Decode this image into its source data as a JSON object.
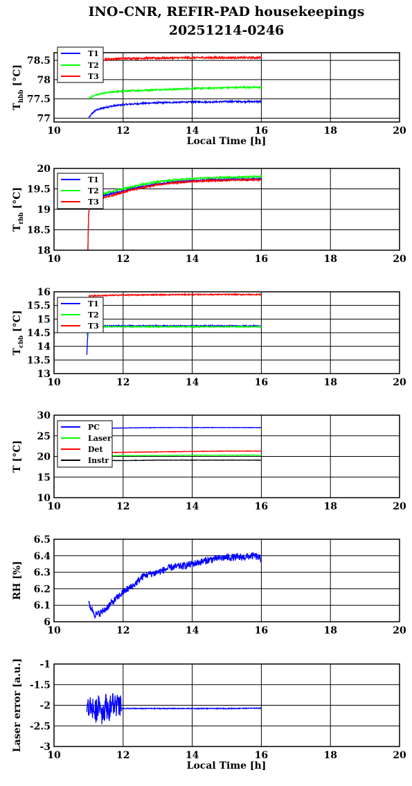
{
  "figure": {
    "title_line1": "INO-CNR, REFIR-PAD housekeepings",
    "title_line2": "20251214-0246"
  },
  "chart_data": [
    {
      "type": "line",
      "ylabel_main": "T",
      "ylabel_sub": "hbb",
      "ylabel_unit": "[°C]",
      "xlabel": "Local Time [h]",
      "xlim": [
        10,
        20
      ],
      "ylim": [
        76.9,
        78.7
      ],
      "xticks": [
        "10",
        "12",
        "14",
        "16",
        "18",
        "20"
      ],
      "yticks": [
        "77",
        "77.5",
        "78",
        "78.5"
      ],
      "ytick_values": [
        77,
        77.5,
        78,
        78.5
      ],
      "legend": "top-left",
      "grid": true,
      "series": [
        {
          "name": "T1",
          "color": "#0000ff",
          "x": [
            11.0,
            11.1,
            11.2,
            11.4,
            11.6,
            11.8,
            12.0,
            12.5,
            13.0,
            13.5,
            14.0,
            14.5,
            15.0,
            15.5,
            16.0
          ],
          "values": [
            77.0,
            77.12,
            77.2,
            77.26,
            77.3,
            77.33,
            77.35,
            77.38,
            77.4,
            77.41,
            77.42,
            77.42,
            77.43,
            77.43,
            77.43
          ],
          "noise": 0.02
        },
        {
          "name": "T2",
          "color": "#00ff00",
          "x": [
            11.0,
            11.1,
            11.2,
            11.4,
            11.6,
            11.8,
            12.0,
            12.5,
            13.0,
            13.5,
            14.0,
            14.5,
            15.0,
            15.5,
            16.0
          ],
          "values": [
            77.5,
            77.56,
            77.6,
            77.64,
            77.67,
            77.69,
            77.7,
            77.72,
            77.74,
            77.75,
            77.77,
            77.78,
            77.79,
            77.8,
            77.8
          ],
          "noise": 0.02
        },
        {
          "name": "T3",
          "color": "#ff0000",
          "x": [
            11.0,
            11.2,
            11.5,
            12.0,
            13.0,
            14.0,
            15.0,
            16.0
          ],
          "values": [
            78.45,
            78.5,
            78.53,
            78.55,
            78.56,
            78.57,
            78.57,
            78.57
          ],
          "noise": 0.025
        }
      ]
    },
    {
      "type": "line",
      "ylabel_main": "T",
      "ylabel_sub": "rbb",
      "ylabel_unit": "[°C]",
      "xlabel": "",
      "xlim": [
        10,
        20
      ],
      "ylim": [
        18,
        20
      ],
      "xticks": [
        "10",
        "12",
        "14",
        "16",
        "18",
        "20"
      ],
      "yticks": [
        "18",
        "18.5",
        "19",
        "19.5",
        "20"
      ],
      "ytick_values": [
        18,
        18.5,
        19,
        19.5,
        20
      ],
      "legend": "top-left",
      "grid": true,
      "series": [
        {
          "name": "T1",
          "color": "#0000ff",
          "x": [
            10.98,
            11.0,
            11.05,
            11.2,
            11.5,
            12.0,
            12.5,
            13.0,
            13.5,
            14.0,
            14.5,
            15.0,
            15.5,
            16.0
          ],
          "values": [
            18.0,
            18.9,
            19.15,
            19.25,
            19.35,
            19.45,
            19.55,
            19.62,
            19.67,
            19.7,
            19.72,
            19.73,
            19.74,
            19.74
          ],
          "noise": 0.02
        },
        {
          "name": "T2",
          "color": "#00ff00",
          "x": [
            10.98,
            11.0,
            11.05,
            11.2,
            11.5,
            12.0,
            12.5,
            13.0,
            13.5,
            14.0,
            14.5,
            15.0,
            15.5,
            16.0
          ],
          "values": [
            18.0,
            18.9,
            19.18,
            19.3,
            19.4,
            19.5,
            19.6,
            19.67,
            19.72,
            19.75,
            19.77,
            19.78,
            19.79,
            19.8
          ],
          "noise": 0.02
        },
        {
          "name": "T3",
          "color": "#ff0000",
          "x": [
            10.98,
            11.0,
            11.05,
            11.2,
            11.5,
            12.0,
            12.5,
            13.0,
            13.5,
            14.0,
            14.5,
            15.0,
            15.5,
            16.0
          ],
          "values": [
            18.0,
            18.9,
            19.1,
            19.2,
            19.3,
            19.42,
            19.52,
            19.6,
            19.65,
            19.68,
            19.7,
            19.71,
            19.72,
            19.72
          ],
          "noise": 0.02
        }
      ]
    },
    {
      "type": "line",
      "ylabel_main": "T",
      "ylabel_sub": "cbb",
      "ylabel_unit": "[°C]",
      "xlabel": "",
      "xlim": [
        10,
        20
      ],
      "ylim": [
        13,
        16
      ],
      "xticks": [
        "10",
        "12",
        "14",
        "16",
        "18",
        "20"
      ],
      "yticks": [
        "13",
        "13.5",
        "14",
        "14.5",
        "15",
        "15.5",
        "16"
      ],
      "ytick_values": [
        13,
        13.5,
        14,
        14.5,
        15,
        15.5,
        16
      ],
      "legend": "top-left",
      "grid": true,
      "series": [
        {
          "name": "T1",
          "color": "#0000ff",
          "x": [
            10.95,
            10.97,
            11.0,
            11.1,
            12.0,
            13.0,
            14.0,
            15.0,
            16.0
          ],
          "values": [
            13.7,
            14.3,
            14.7,
            14.75,
            14.75,
            14.75,
            14.75,
            14.75,
            14.75
          ],
          "noise": 0.02
        },
        {
          "name": "T2",
          "color": "#00ff00",
          "x": [
            10.95,
            10.97,
            11.0,
            11.1,
            12.0,
            13.0,
            14.0,
            15.0,
            16.0
          ],
          "values": [
            14.4,
            14.6,
            14.7,
            14.72,
            14.72,
            14.72,
            14.72,
            14.72,
            14.72
          ],
          "noise": 0.02
        },
        {
          "name": "T3",
          "color": "#ff0000",
          "x": [
            11.0,
            12.0,
            13.0,
            14.0,
            15.0,
            16.0
          ],
          "values": [
            15.85,
            15.88,
            15.89,
            15.9,
            15.9,
            15.9
          ],
          "noise": 0.02
        }
      ]
    },
    {
      "type": "line",
      "ylabel_main": "T [°C]",
      "ylabel_sub": "",
      "ylabel_unit": "",
      "xlabel": "",
      "xlim": [
        10,
        20
      ],
      "ylim": [
        10,
        30
      ],
      "xticks": [
        "10",
        "12",
        "14",
        "16",
        "18",
        "20"
      ],
      "yticks": [
        "10",
        "15",
        "20",
        "25",
        "30"
      ],
      "ytick_values": [
        10,
        15,
        20,
        25,
        30
      ],
      "legend": "top-left",
      "grid": true,
      "series": [
        {
          "name": "PC",
          "color": "#0000ff",
          "x": [
            11.0,
            12.0,
            13.0,
            14.0,
            15.0,
            16.0
          ],
          "values": [
            26.8,
            26.9,
            27.0,
            27.0,
            27.0,
            27.0
          ],
          "noise": 0.05
        },
        {
          "name": "Laser",
          "color": "#00ff00",
          "x": [
            11.0,
            12.0,
            13.0,
            14.0,
            15.0,
            16.0
          ],
          "values": [
            20.1,
            20.2,
            20.2,
            20.3,
            20.3,
            20.3
          ],
          "noise": 0.05
        },
        {
          "name": "Det",
          "color": "#ff0000",
          "x": [
            11.0,
            12.0,
            13.0,
            14.0,
            15.0,
            16.0
          ],
          "values": [
            20.8,
            21.0,
            21.1,
            21.2,
            21.3,
            21.3
          ],
          "noise": 0.06
        },
        {
          "name": "Instr",
          "color": "#000000",
          "x": [
            11.0,
            12.0,
            13.0,
            14.0,
            15.0,
            16.0
          ],
          "values": [
            19.0,
            19.0,
            19.1,
            19.1,
            19.1,
            19.1
          ],
          "noise": 0.05
        }
      ]
    },
    {
      "type": "line",
      "ylabel_main": "RH [%]",
      "ylabel_sub": "",
      "ylabel_unit": "",
      "xlabel": "",
      "xlim": [
        10,
        20
      ],
      "ylim": [
        6,
        6.5
      ],
      "xticks": [
        "10",
        "12",
        "14",
        "16",
        "18",
        "20"
      ],
      "yticks": [
        "6",
        "6.1",
        "6.2",
        "6.3",
        "6.4",
        "6.5"
      ],
      "ytick_values": [
        6,
        6.1,
        6.2,
        6.3,
        6.4,
        6.5
      ],
      "legend": "none",
      "grid": true,
      "series": [
        {
          "name": "",
          "color": "#0000ff",
          "x": [
            11.0,
            11.2,
            11.4,
            11.6,
            11.8,
            12.0,
            12.3,
            12.6,
            13.0,
            13.4,
            13.8,
            14.2,
            14.6,
            15.0,
            15.4,
            15.8,
            16.0
          ],
          "values": [
            6.11,
            6.04,
            6.06,
            6.1,
            6.14,
            6.18,
            6.22,
            6.28,
            6.3,
            6.33,
            6.34,
            6.36,
            6.38,
            6.39,
            6.39,
            6.4,
            6.38
          ],
          "noise": 0.022
        }
      ]
    },
    {
      "type": "line",
      "ylabel_main": "Laser error [a.u.]",
      "ylabel_sub": "",
      "ylabel_unit": "",
      "xlabel": "Local Time [h]",
      "xlim": [
        10,
        20
      ],
      "ylim": [
        -3,
        -1
      ],
      "xticks": [
        "10",
        "12",
        "14",
        "16",
        "18",
        "20"
      ],
      "yticks": [
        "-3",
        "-2.5",
        "-2",
        "-1.5",
        "-1"
      ],
      "ytick_values": [
        -3,
        -2.5,
        -2,
        -1.5,
        -1
      ],
      "legend": "none",
      "grid": true,
      "series": [
        {
          "name": "",
          "color": "#0000ff",
          "x": [
            10.95,
            11.1,
            11.2,
            11.3,
            11.4,
            11.5,
            11.6,
            11.7,
            11.8,
            11.9,
            12.0,
            12.5,
            13.0,
            14.0,
            15.0,
            16.0
          ],
          "values": [
            -2.1,
            -2.0,
            -2.2,
            -1.9,
            -2.2,
            -2.0,
            -2.1,
            -1.95,
            -2.0,
            -2.05,
            -2.08,
            -2.08,
            -2.08,
            -2.08,
            -2.08,
            -2.07
          ],
          "noise": 0.01,
          "burst": [
            10.95,
            11.95,
            0.3
          ]
        }
      ]
    }
  ]
}
